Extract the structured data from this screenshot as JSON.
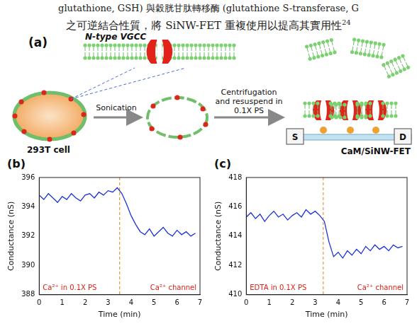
{
  "header_text": {
    "lines": [
      "glutathione, GSH) 與穀胱甘肽轉移酶 (glutathione S-transferase, G",
      "之可逆結合性質，將 SiNW-FET 重複使用以提高其實用性"
    ],
    "citation": "24"
  },
  "diagram": {
    "panel": "(a)",
    "channel_label": "N-type VGCC",
    "cell_label": "293T cell",
    "step1": "Sonication",
    "step2": "Centrifugation and resuspend in 0.1X PS",
    "source": "S",
    "drain": "D",
    "device_label": "CaM/SiNW-FET"
  },
  "chart_data": [
    {
      "panel": "(b)",
      "type": "line",
      "color": "#1c33d6",
      "grid": false,
      "x_label": "Time (min)",
      "y_label": "Conductance (nS)",
      "x": [
        0,
        0.2,
        0.4,
        0.6,
        0.8,
        1.0,
        1.2,
        1.4,
        1.6,
        1.8,
        2.0,
        2.2,
        2.4,
        2.6,
        2.8,
        3.0,
        3.2,
        3.4,
        3.6,
        3.8,
        4.0,
        4.2,
        4.4,
        4.6,
        4.8,
        5.0,
        5.2,
        5.4,
        5.6,
        5.8,
        6.0,
        6.2,
        6.4,
        6.6,
        6.8
      ],
      "values": [
        394.8,
        394.5,
        394.9,
        394.6,
        394.3,
        394.7,
        394.5,
        394.9,
        394.6,
        394.4,
        394.8,
        394.9,
        394.6,
        395.0,
        394.8,
        395.1,
        395.0,
        395.3,
        394.9,
        394.2,
        393.4,
        392.8,
        392.3,
        392.1,
        392.5,
        392.0,
        392.3,
        392.6,
        392.2,
        392.0,
        392.4,
        392.1,
        392.3,
        392.0,
        392.2
      ],
      "xlim": [
        0,
        7
      ],
      "xticks": [
        0,
        1,
        2,
        3,
        4,
        5,
        6,
        7
      ],
      "ylim": [
        388,
        396
      ],
      "yticks": [
        388,
        390,
        392,
        394,
        396
      ],
      "vline_x": 3.5,
      "annotations": [
        "Ca²⁺ in 0.1X PS",
        "Ca²⁺ channel"
      ]
    },
    {
      "panel": "(c)",
      "type": "line",
      "color": "#1c33d6",
      "grid": false,
      "x_label": "Time (min)",
      "y_label": "Conductance (nS)",
      "x": [
        0,
        0.2,
        0.4,
        0.6,
        0.8,
        1.0,
        1.2,
        1.4,
        1.6,
        1.8,
        2.0,
        2.2,
        2.4,
        2.6,
        2.8,
        3.0,
        3.2,
        3.4,
        3.6,
        3.8,
        4.0,
        4.2,
        4.4,
        4.6,
        4.8,
        5.0,
        5.2,
        5.4,
        5.6,
        5.8,
        6.0,
        6.2,
        6.4,
        6.6,
        6.8
      ],
      "values": [
        415.3,
        415.6,
        415.2,
        415.5,
        415.0,
        415.4,
        415.7,
        415.3,
        415.5,
        415.1,
        415.4,
        415.6,
        415.3,
        415.8,
        415.5,
        415.7,
        415.4,
        415.0,
        413.6,
        412.6,
        412.9,
        412.5,
        413.0,
        412.7,
        413.1,
        412.8,
        413.3,
        413.0,
        413.4,
        413.1,
        413.3,
        413.0,
        413.4,
        413.2,
        413.3
      ],
      "xlim": [
        0,
        7
      ],
      "xticks": [
        0,
        1,
        2,
        3,
        4,
        5,
        6,
        7
      ],
      "ylim": [
        410,
        418
      ],
      "yticks": [
        410,
        412,
        414,
        416,
        418
      ],
      "vline_x": 3.35,
      "annotations": [
        "EDTA in 0.1X PS",
        "Ca²⁺ channel"
      ]
    }
  ]
}
